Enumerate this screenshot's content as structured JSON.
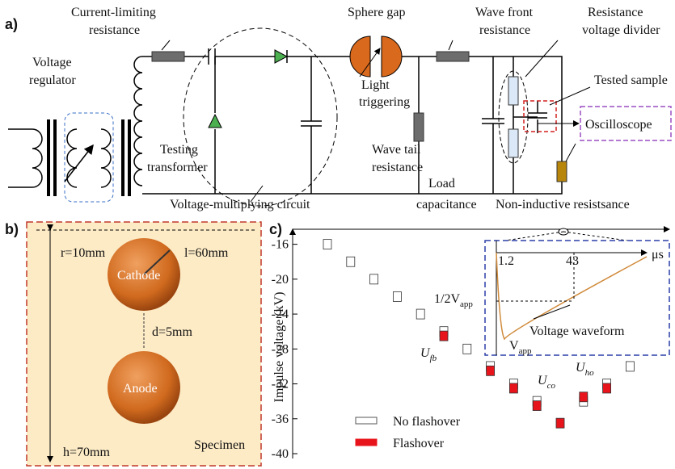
{
  "circuit": {
    "panel_label": "a)",
    "labels": [
      [
        "Current-limiting",
        "resistance"
      ],
      [
        "Voltage",
        "regulator"
      ],
      [
        "Testing",
        "transformer"
      ],
      [
        "Voltage-multiplying circuit"
      ],
      [
        "Sphere gap"
      ],
      [
        "Light",
        "triggering"
      ],
      [
        "Wave front",
        "resistance"
      ],
      [
        "Wave tail",
        "resistance"
      ],
      [
        "Load",
        "capacitance"
      ],
      [
        "Resistance",
        "voltage divider"
      ],
      [
        "Tested sample"
      ],
      [
        "Oscilloscope"
      ],
      [
        "Non-inductive resistsance"
      ]
    ]
  },
  "specimen": {
    "panel_label": "b)",
    "labels": [
      "r=10mm",
      "l=60mm",
      "Cathode",
      "d=5mm",
      "Anode",
      "h=70mm",
      "Specimen"
    ]
  },
  "chart_data": {
    "type": "scatter",
    "panel_label": "c)",
    "y_label": "Impulse voltage (kV)",
    "categories": [
      null,
      null,
      null,
      null,
      null,
      null,
      null,
      null,
      null,
      null,
      null,
      null,
      null,
      null
    ],
    "series": [
      {
        "name": "No flashover",
        "color": "#ffffff",
        "values": [
          -16,
          -18,
          -20,
          -22,
          -24,
          -26,
          -28,
          -30,
          -32,
          -34,
          null,
          -34,
          -32,
          -30
        ]
      },
      {
        "name": "Flashover",
        "color": "#e8141b",
        "values": [
          null,
          null,
          null,
          null,
          null,
          -26.5,
          null,
          -30.5,
          -32.5,
          -34.5,
          -36.5,
          -33.5,
          -32.5,
          null
        ]
      }
    ],
    "ylim": [
      -40,
      -14
    ],
    "yticks": [
      -16,
      -20,
      -24,
      -28,
      -32,
      -36,
      -40
    ],
    "annotations": [
      {
        "main": "U",
        "sub": "fb"
      },
      {
        "main": "U",
        "sub": "co"
      },
      {
        "main": "U",
        "sub": "ho"
      }
    ],
    "inset": {
      "t1": "1.2",
      "t2": "43",
      "unit": "μs",
      "half": {
        "main": "1/2V",
        "sub": "app"
      },
      "peak": {
        "main": "V",
        "sub": "app"
      },
      "caption": "Voltage waveform"
    }
  }
}
